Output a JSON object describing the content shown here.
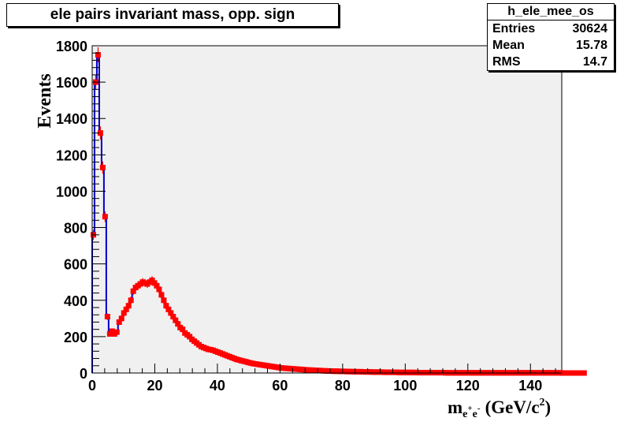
{
  "chart_data": {
    "type": "bar",
    "title": "ele pairs invariant mass, opp. sign",
    "ylabel": "Events",
    "xlabel_main": "m",
    "xlabel_sub": "e",
    "xlabel_sup1": "+",
    "xlabel_sub2": "e",
    "xlabel_sup2": "-",
    "xlabel_units": "(GeV/c",
    "xlabel_units_sup": "2",
    "xlabel_close": ")",
    "xlim": [
      0,
      150
    ],
    "ylim": [
      0,
      1800
    ],
    "x_ticks": [
      "0",
      "20",
      "40",
      "60",
      "80",
      "100",
      "120",
      "140"
    ],
    "y_ticks": [
      "0",
      "200",
      "400",
      "600",
      "800",
      "1000",
      "1200",
      "1400",
      "1600",
      "1800"
    ],
    "bin_width": 0.75,
    "series": [
      {
        "values": [
          760,
          1600,
          1750,
          1320,
          1130,
          860,
          310,
          215,
          230,
          215,
          225,
          280,
          300,
          330,
          350,
          370,
          400,
          450,
          470,
          480,
          490,
          500,
          495,
          490,
          500,
          510,
          495,
          480,
          460,
          430,
          400,
          370,
          350,
          330,
          310,
          290,
          270,
          250,
          240,
          220,
          210,
          200,
          185,
          175,
          165,
          155,
          145,
          140,
          135,
          130,
          128,
          125,
          120,
          115,
          110,
          105,
          100,
          95,
          90,
          85,
          80,
          75,
          72,
          68,
          65,
          62,
          58,
          55,
          52,
          50,
          48,
          46,
          44,
          42,
          40,
          38,
          36,
          34,
          32,
          30,
          28,
          27,
          26,
          25,
          24,
          23,
          22,
          21,
          20,
          19,
          18,
          17,
          16,
          16,
          15,
          14,
          14,
          13,
          12,
          12,
          11,
          11,
          10,
          10,
          10,
          9,
          9,
          9,
          8,
          8,
          8,
          7,
          7,
          7,
          7,
          6,
          6,
          6,
          6,
          5,
          5,
          5,
          5,
          5,
          4,
          4,
          4,
          4,
          4,
          4,
          3,
          3,
          3,
          3,
          3,
          3,
          3,
          3,
          2,
          2,
          2,
          2,
          2,
          2,
          2,
          2,
          2,
          2,
          2,
          2,
          1,
          1,
          1,
          1,
          1,
          1,
          1,
          1,
          1,
          1,
          1,
          1,
          1,
          1,
          1,
          1,
          1,
          1,
          1,
          1,
          1,
          1,
          1,
          1,
          1,
          1,
          1,
          1,
          1,
          1,
          1,
          1,
          1,
          1,
          1,
          1,
          1,
          1,
          1,
          1,
          1,
          1,
          1,
          1,
          1,
          1,
          1,
          1,
          1,
          1,
          0,
          0,
          0,
          0,
          0,
          0,
          0,
          0,
          0,
          0
        ],
        "color": "#0000cc",
        "marker_color": "#ff0000"
      }
    ],
    "fill_color": "#f0f0f0",
    "grid": false
  },
  "stats": {
    "name": "h_ele_mee_os",
    "entries_label": "Entries",
    "entries": "30624",
    "mean_label": "Mean",
    "mean": "15.78",
    "rms_label": "RMS",
    "rms": "14.7"
  }
}
